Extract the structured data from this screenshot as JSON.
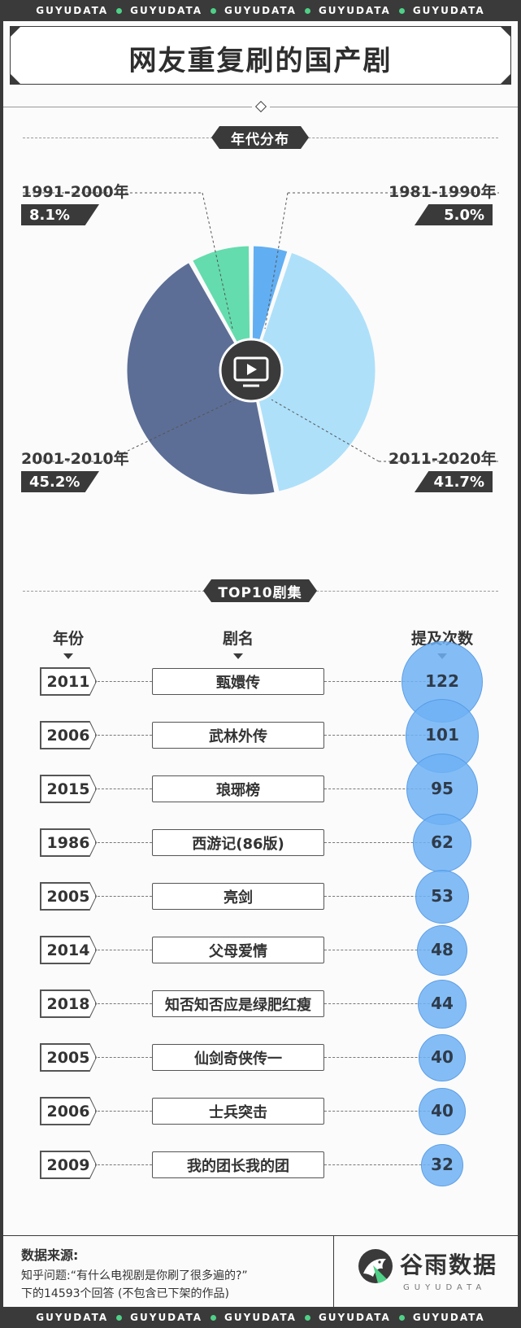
{
  "strip_word": "GUYUDATA",
  "title": "网友重复刷的国产剧",
  "section1": "年代分布",
  "section2": "TOP10剧集",
  "colors": {
    "dark": "#3a3a3a",
    "accent_green": "#4fd187",
    "bubble": "#6eb2f5"
  },
  "chart_data": [
    {
      "type": "pie",
      "title": "年代分布",
      "center_icon": "tv-icon",
      "slices": [
        {
          "label": "1981-1990年",
          "value": 5.0,
          "pct": "5.0%",
          "color": "#62aef2"
        },
        {
          "label": "2011-2020年",
          "value": 41.7,
          "pct": "41.7%",
          "color": "#aee0fa"
        },
        {
          "label": "2001-2010年",
          "value": 45.2,
          "pct": "45.2%",
          "color": "#5c6e96"
        },
        {
          "label": "1991-2000年",
          "value": 8.1,
          "pct": "8.1%",
          "color": "#64dcae"
        }
      ]
    },
    {
      "type": "table",
      "title": "TOP10剧集",
      "columns": [
        "年份",
        "剧名",
        "提及次数"
      ],
      "rows": [
        {
          "year": "2011",
          "name": "甄嬛传",
          "count": 122
        },
        {
          "year": "2006",
          "name": "武林外传",
          "count": 101
        },
        {
          "year": "2015",
          "name": "琅琊榜",
          "count": 95
        },
        {
          "year": "1986",
          "name": "西游记(86版)",
          "count": 62
        },
        {
          "year": "2005",
          "name": "亮剑",
          "count": 53
        },
        {
          "year": "2014",
          "name": "父母爱情",
          "count": 48
        },
        {
          "year": "2018",
          "name": "知否知否应是绿肥红瘦",
          "count": 44
        },
        {
          "year": "2005",
          "name": "仙剑奇侠传一",
          "count": 40
        },
        {
          "year": "2006",
          "name": "士兵突击",
          "count": 40
        },
        {
          "year": "2009",
          "name": "我的团长我的团",
          "count": 32
        }
      ]
    }
  ],
  "footer": {
    "source_title": "数据来源:",
    "source_line1": "知乎问题:“有什么电视剧是你刷了很多遍的?”",
    "source_line2": "下的14593个回答 (不包含已下架的作品)",
    "logo_cn": "谷雨数据",
    "logo_en": "GUYUDATA"
  }
}
